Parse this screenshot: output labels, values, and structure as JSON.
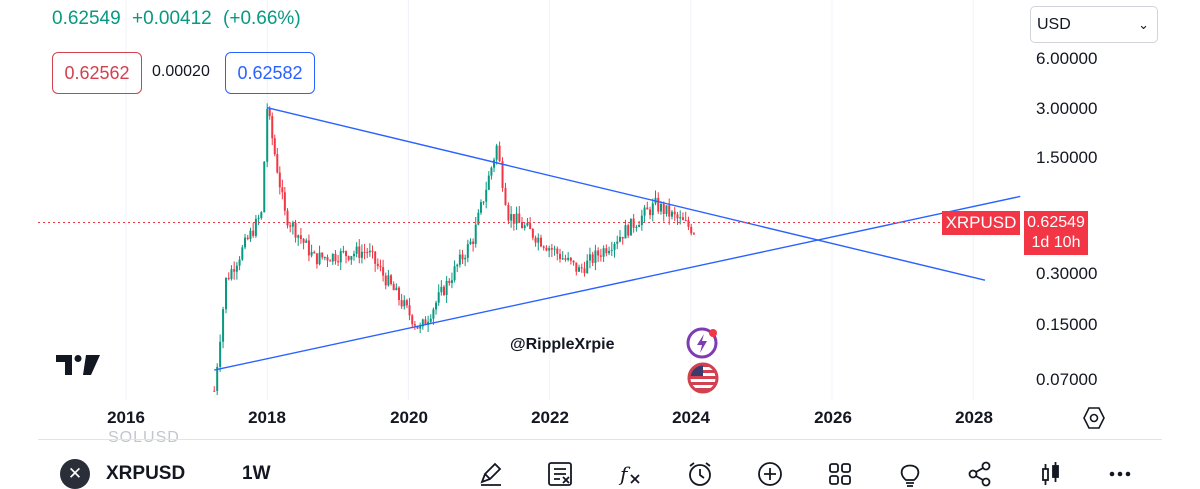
{
  "header": {
    "last_price": "0.62549",
    "change": "+0.00412",
    "change_pct": "(+0.66%)"
  },
  "quote": {
    "sell": "0.62562",
    "spread": "0.00020",
    "buy": "0.62582"
  },
  "currency": {
    "label": "USD"
  },
  "price_tag": {
    "symbol": "XRPUSD",
    "price": "0.62549",
    "countdown": "1d 10h"
  },
  "watermark": "@RippleXrpie",
  "ghost_symbol": "SOLUSD",
  "bottom_bar": {
    "symbol": "XRPUSD",
    "interval": "1W",
    "tools": [
      "draw-icon",
      "notes-icon",
      "indicators-icon",
      "alert-clock-icon",
      "add-icon",
      "layout-grid-icon",
      "idea-bulb-icon",
      "share-icon",
      "candles-icon",
      "more-icon"
    ]
  },
  "colors": {
    "up": "#089981",
    "down": "#f23645",
    "trendline": "#2962ff",
    "price_line": "#f23645"
  },
  "chart_data": {
    "type": "candlestick",
    "symbol": "XRPUSD",
    "interval": "1W",
    "scale": "log",
    "y_ticks": [
      "6.00000",
      "3.00000",
      "1.50000",
      "0.30000",
      "0.15000",
      "0.07000"
    ],
    "x_ticks": [
      "2016",
      "2018",
      "2020",
      "2022",
      "2024",
      "2026",
      "2028"
    ],
    "last_price": 0.62549,
    "approx_closes": [
      {
        "date": "2017-04",
        "price": 0.06
      },
      {
        "date": "2017-06",
        "price": 0.28
      },
      {
        "date": "2017-12",
        "price": 0.7
      },
      {
        "date": "2018-01",
        "price": 3.1
      },
      {
        "date": "2018-04",
        "price": 0.7
      },
      {
        "date": "2018-09",
        "price": 0.38
      },
      {
        "date": "2019-06",
        "price": 0.42
      },
      {
        "date": "2020-03",
        "price": 0.14
      },
      {
        "date": "2020-12",
        "price": 0.5
      },
      {
        "date": "2021-04",
        "price": 1.8
      },
      {
        "date": "2021-06",
        "price": 0.7
      },
      {
        "date": "2022-06",
        "price": 0.32
      },
      {
        "date": "2023-07",
        "price": 0.8
      },
      {
        "date": "2024-02",
        "price": 0.55
      }
    ],
    "trendlines": [
      {
        "name": "descending",
        "from": {
          "date": "2018-01",
          "price": 3.1
        },
        "to": {
          "date": "2028-03",
          "price": 0.28
        }
      },
      {
        "name": "ascending",
        "from": {
          "date": "2017-04",
          "price": 0.08
        },
        "to": {
          "date": "2028-09",
          "price": 0.9
        }
      }
    ]
  }
}
